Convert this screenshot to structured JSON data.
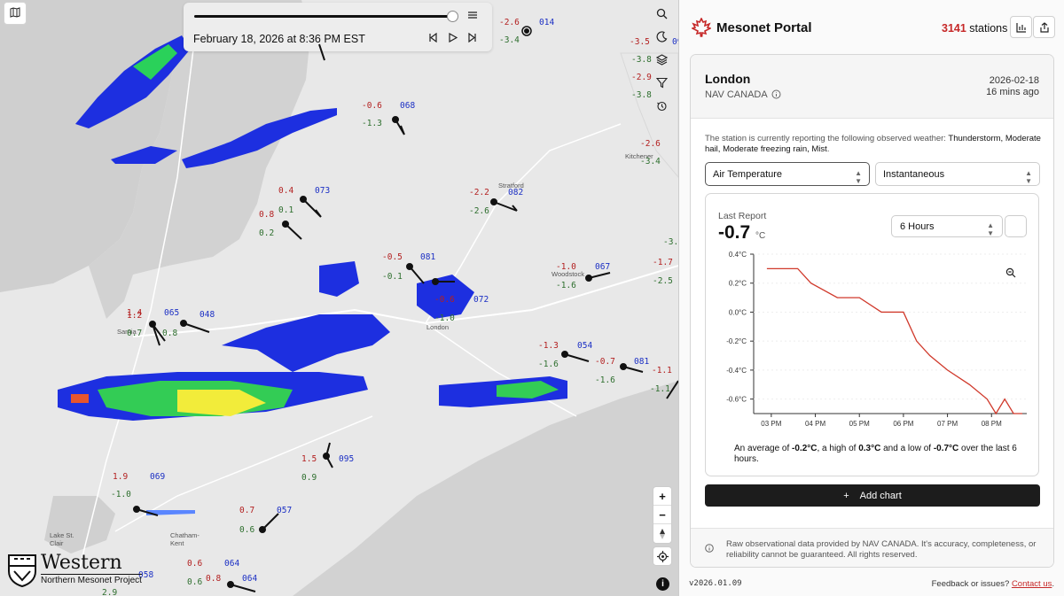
{
  "map": {
    "timeline": {
      "date_label": "February 18, 2026 at 8:36 PM EST"
    },
    "icons": {
      "map_toggle": "map-icon",
      "speed": "gauge-icon",
      "search": "search-icon",
      "night": "moon-icon",
      "layers": "layers-icon",
      "filter": "filter-icon",
      "clock": "history-icon"
    },
    "towns": {
      "stratford": "Stratford",
      "kitchener": "Kitchener",
      "woodstock": "Woodstock",
      "london": "London",
      "sarnia": "Sarnia",
      "chatham": "Chatham-\nKent",
      "lakestclair": "Lake St.\nClair"
    },
    "stations": [
      {
        "id": "014",
        "t": "-2.6",
        "d": "-3.4"
      },
      {
        "id": "068",
        "t": "-0.6",
        "d": "-1.3"
      },
      {
        "id": "073",
        "t": "0.4",
        "d": "0.1"
      },
      {
        "id": "082",
        "t": "-2.2",
        "d": "-2.6"
      },
      {
        "id": "081",
        "t": "-0.5",
        "d": "-0.1"
      },
      {
        "id": "072",
        "t": "-0.6",
        "d": "-1.0"
      },
      {
        "id": "067",
        "t": "-1.0",
        "d": "-1.6"
      },
      {
        "id": "054",
        "t": "-1.3",
        "d": "-1.6"
      },
      {
        "id": "048",
        "t": "",
        "d": ""
      },
      {
        "id": "065",
        "t": "1.4",
        "d": "0.8"
      },
      {
        "id": "095",
        "t": "1.5",
        "d": "0.9"
      },
      {
        "id": "069",
        "t": "1.9",
        "d": "-1.0"
      },
      {
        "id": "057",
        "t": "0.7",
        "d": "0.6"
      },
      {
        "id": "058",
        "t": "",
        "d": "2.9"
      },
      {
        "id": "064",
        "t": "0.6",
        "d": "0.6"
      }
    ],
    "extra_temps": {
      "t1": "-3.5",
      "t2": "-3.8",
      "t3": "-2.9",
      "t4": "-3.8",
      "t5": "-2.6",
      "t6": "-3.4",
      "t7": "-1.7",
      "t8": "-2.5",
      "t9": "-3.",
      "t10": "-1.1",
      "t11": "-1.1",
      "t12": "-0.7",
      "t13": "-1.6",
      "t14": "0.8",
      "t15": "0.2",
      "t16": "1.2",
      "t17": "0.7",
      "t18": "0.8"
    },
    "extra_ids": {
      "i1": "09",
      "i2": "081"
    },
    "brand": {
      "title": "Western",
      "subtitle": "Northern Mesonet Project"
    },
    "zoom": {
      "in": "+",
      "out": "−"
    }
  },
  "panel": {
    "app_name": "Mesonet Portal",
    "station_count": "3141",
    "station_count_label": "stations",
    "station": {
      "name": "London",
      "network": "NAV CANADA",
      "date": "2026-02-18",
      "ago": "16 mins ago",
      "weather_prefix": "The station is currently reporting the following observed weather:",
      "weather_list": "Thunderstorm, Moderate hail, Moderate freezing rain, Mist",
      "weather_suffix": "."
    },
    "selects": {
      "variable": "Air Temperature",
      "mode": "Instantaneous"
    },
    "report": {
      "label": "Last Report",
      "value": "-0.7",
      "unit": "°C",
      "range": "6 Hours"
    },
    "summary": {
      "p1": "An average of ",
      "avg": "-0.2°C",
      "p2": ", a high of ",
      "high": "0.3°C",
      "p3": " and a low of ",
      "low": "-0.7°C",
      "p4": " over the last 6 hours."
    },
    "add_chart": "Add chart",
    "disclaimer": "Raw observational data provided by NAV CANADA. It's accuracy, completeness, or reliability cannot be guaranteed. All rights reserved.",
    "version": "v2026.01.09",
    "feedback": "Feedback or issues?",
    "contact": "Contact us",
    "contact_suffix": ".",
    "colors": {
      "accent": "#c62828",
      "line": "#d0392b"
    }
  },
  "chart_data": {
    "type": "line",
    "ylim": [
      -0.7,
      0.4
    ],
    "yticks": [
      "0.4°C",
      "0.2°C",
      "0.0°C",
      "-0.2°C",
      "-0.4°C",
      "-0.6°C"
    ],
    "ytick_values": [
      0.4,
      0.2,
      0.0,
      -0.2,
      -0.4,
      -0.6
    ],
    "xticks": [
      "03 PM",
      "04 PM",
      "05 PM",
      "06 PM",
      "07 PM",
      "08 PM"
    ],
    "xtick_hours": [
      15,
      16,
      17,
      18,
      19,
      20
    ],
    "xlim": [
      14.6,
      20.8
    ],
    "x": [
      14.9,
      15.6,
      15.9,
      16.5,
      17.0,
      17.5,
      18.0,
      18.3,
      18.6,
      19.0,
      19.5,
      19.9,
      20.1,
      20.3,
      20.5,
      20.7
    ],
    "values": [
      0.3,
      0.3,
      0.2,
      0.1,
      0.1,
      0.0,
      0.0,
      -0.2,
      -0.3,
      -0.4,
      -0.5,
      -0.6,
      -0.7,
      -0.6,
      -0.7,
      -0.7
    ]
  }
}
